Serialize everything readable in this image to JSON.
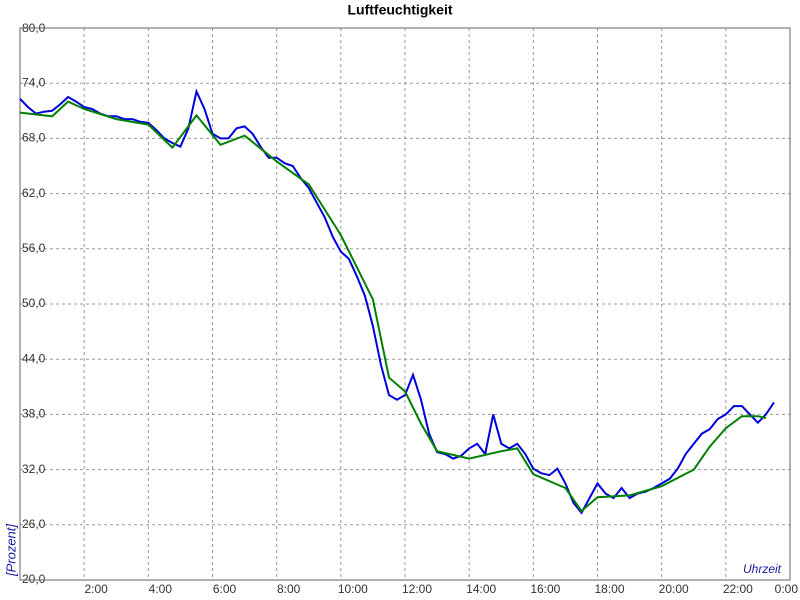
{
  "chart_data": {
    "type": "line",
    "title": "Luftfeuchtigkeit",
    "y_label": "[Prozent]",
    "x_label": "Uhrzeit",
    "xlim": [
      0,
      24
    ],
    "ylim": [
      20,
      80
    ],
    "xticks": [
      {
        "value": 2,
        "label": "2:00"
      },
      {
        "value": 4,
        "label": "4:00"
      },
      {
        "value": 6,
        "label": "6:00"
      },
      {
        "value": 8,
        "label": "8:00"
      },
      {
        "value": 10,
        "label": "10:00"
      },
      {
        "value": 12,
        "label": "12:00"
      },
      {
        "value": 14,
        "label": "14:00"
      },
      {
        "value": 16,
        "label": "16:00"
      },
      {
        "value": 18,
        "label": "18:00"
      },
      {
        "value": 20,
        "label": "20:00"
      },
      {
        "value": 22,
        "label": "22:00"
      },
      {
        "value": 24,
        "label": "0:00"
      }
    ],
    "yticks": [
      {
        "value": 20,
        "label": "20,0"
      },
      {
        "value": 26,
        "label": "26,0"
      },
      {
        "value": 32,
        "label": "32,0"
      },
      {
        "value": 38,
        "label": "38,0"
      },
      {
        "value": 44,
        "label": "44,0"
      },
      {
        "value": 50,
        "label": "50,0"
      },
      {
        "value": 56,
        "label": "56,0"
      },
      {
        "value": 62,
        "label": "62,0"
      },
      {
        "value": 68,
        "label": "68,0"
      },
      {
        "value": 74,
        "label": "74,0"
      },
      {
        "value": 80,
        "label": "80,0"
      }
    ],
    "grid": true,
    "series": [
      {
        "color": "#0000dd",
        "x": [
          0,
          0.25,
          0.5,
          0.75,
          1,
          1.25,
          1.5,
          1.75,
          2,
          2.25,
          2.5,
          2.75,
          3,
          3.25,
          3.5,
          3.75,
          4,
          4.25,
          4.5,
          4.75,
          5,
          5.25,
          5.5,
          5.75,
          6,
          6.25,
          6.5,
          6.75,
          7,
          7.25,
          7.5,
          7.75,
          8,
          8.25,
          8.5,
          8.75,
          9,
          9.25,
          9.5,
          9.75,
          10,
          10.25,
          10.5,
          10.75,
          11,
          11.25,
          11.5,
          11.75,
          12,
          12.25,
          12.5,
          12.75,
          13,
          13.25,
          13.5,
          13.75,
          14,
          14.25,
          14.5,
          14.75,
          15,
          15.25,
          15.5,
          15.75,
          16,
          16.25,
          16.5,
          16.75,
          17,
          17.25,
          17.5,
          17.75,
          18,
          18.25,
          18.5,
          18.75,
          19,
          19.25,
          19.5,
          19.75,
          20,
          20.25,
          20.5,
          20.75,
          21,
          21.25,
          21.5,
          21.75,
          22,
          22.25,
          22.5,
          22.75,
          23,
          23.25,
          23.5
        ],
        "values": [
          72.3,
          71.4,
          70.7,
          70.9,
          71,
          71.7,
          72.5,
          72,
          71.4,
          71.2,
          70.7,
          70.4,
          70.4,
          70.1,
          70.1,
          69.8,
          69.7,
          68.9,
          68,
          67.5,
          67.1,
          69.1,
          73.1,
          71.2,
          68.5,
          68,
          68,
          69.1,
          69.3,
          68.5,
          67.1,
          65.9,
          65.9,
          65.3,
          65,
          63.7,
          62.6,
          61,
          59.4,
          57.3,
          55.7,
          54.9,
          53,
          50.9,
          47.6,
          43.4,
          40.1,
          39.6,
          40.1,
          42.3,
          39.6,
          35.9,
          33.9,
          33.7,
          33.2,
          33.5,
          34.3,
          34.8,
          33.7,
          38,
          34.8,
          34.3,
          34.8,
          33.7,
          32.1,
          31.6,
          31.4,
          32.1,
          30.5,
          28.4,
          27.3,
          28.9,
          30.5,
          29.4,
          28.9,
          30,
          28.9,
          29.4,
          29.6,
          30,
          30.5,
          31,
          32.1,
          33.7,
          34.8,
          35.9,
          36.4,
          37.5,
          38,
          38.9,
          38.9,
          38,
          37.1,
          38,
          39.3
        ]
      },
      {
        "color": "#008000",
        "x": [
          0,
          1,
          1.5,
          2,
          3,
          4,
          4.75,
          5.5,
          6.25,
          7,
          8,
          9,
          10,
          11,
          11.5,
          12,
          12.5,
          13,
          14,
          15,
          15.5,
          16,
          17,
          17.5,
          18,
          19,
          20,
          21,
          21.5,
          22,
          22.5,
          23,
          23.25
        ],
        "values": [
          70.8,
          70.4,
          72,
          71.2,
          70.1,
          69.5,
          67,
          70.5,
          67.3,
          68.3,
          65.5,
          63,
          57.5,
          50.5,
          42,
          40.5,
          37,
          34,
          33.2,
          34,
          34.3,
          31.5,
          30,
          27.5,
          29,
          29.2,
          30.2,
          32,
          34.5,
          36.5,
          37.8,
          37.8,
          37.6
        ]
      }
    ]
  }
}
